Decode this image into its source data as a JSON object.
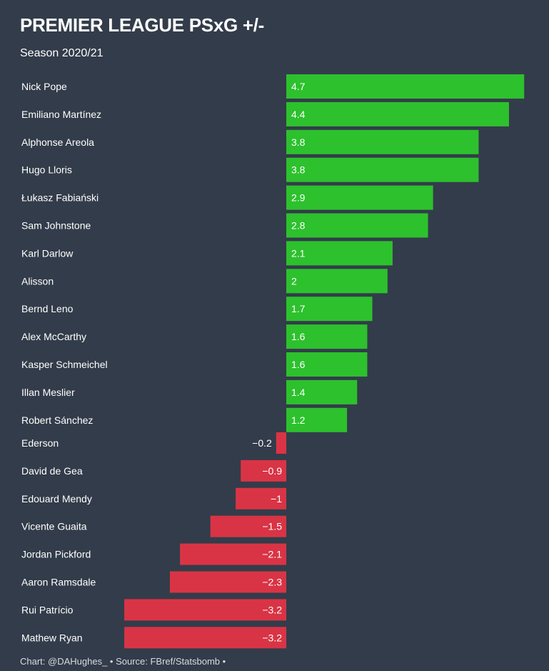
{
  "header": {
    "title": "PREMIER LEAGUE PSxG +/-",
    "subtitle": "Season 2020/21"
  },
  "footer": {
    "credit": "Chart: @DAHughes_ • Source: FBref/Statsbomb •"
  },
  "colors": {
    "background": "#333c4a",
    "positive": "#2dc12d",
    "negative": "#d93445"
  },
  "chart_data": {
    "type": "bar",
    "orientation": "horizontal",
    "title": "PREMIER LEAGUE PSxG +/-",
    "subtitle": "Season 2020/21",
    "categories": [
      "Nick Pope",
      "Emiliano Martínez",
      "Alphonse Areola",
      "Hugo Lloris",
      "Łukasz Fabiański",
      "Sam Johnstone",
      "Karl Darlow",
      "Alisson",
      "Bernd Leno",
      "Alex McCarthy",
      "Kasper Schmeichel",
      "Illan Meslier",
      "Robert Sánchez",
      "Ederson",
      "David de Gea",
      "Edouard Mendy",
      "Vicente Guaita",
      "Jordan Pickford",
      "Aaron Ramsdale",
      "Rui Patrício",
      "Mathew Ryan"
    ],
    "values": [
      4.7,
      4.4,
      3.8,
      3.8,
      2.9,
      2.8,
      2.1,
      2,
      1.7,
      1.6,
      1.6,
      1.4,
      1.2,
      -0.2,
      -0.9,
      -1,
      -1.5,
      -2.1,
      -2.3,
      -3.2,
      -3.2
    ],
    "value_labels": [
      "4.7",
      "4.4",
      "3.8",
      "3.8",
      "2.9",
      "2.8",
      "2.1",
      "2",
      "1.7",
      "1.6",
      "1.6",
      "1.4",
      "1.2",
      "−0.2",
      "−0.9",
      "−1",
      "−1.5",
      "−2.1",
      "−2.3",
      "−3.2",
      "−3.2"
    ],
    "xlim": [
      -3.2,
      4.7
    ],
    "grid": false,
    "legend": "none"
  }
}
